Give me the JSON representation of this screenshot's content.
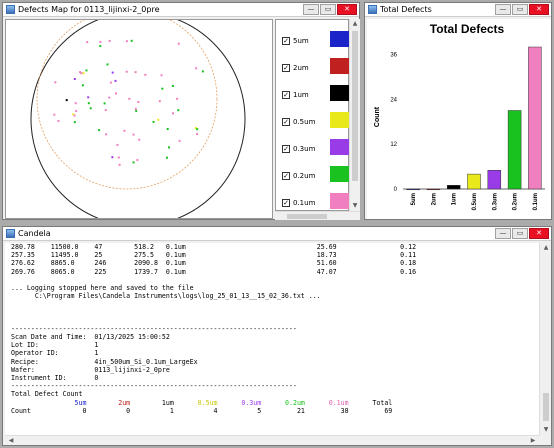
{
  "defects_map": {
    "title": "Defects Map for 0113_lijinxi-2_0pre",
    "legend": [
      {
        "label": "5um",
        "color": "#1b24c8",
        "checked": true
      },
      {
        "label": "2um",
        "color": "#c0201f",
        "checked": true
      },
      {
        "label": "1um",
        "color": "#000000",
        "checked": true
      },
      {
        "label": "0.5um",
        "color": "#e8e81a",
        "checked": true
      },
      {
        "label": "0.3um",
        "color": "#9a3be8",
        "checked": true
      },
      {
        "label": "0.2um",
        "color": "#19c21f",
        "checked": true
      },
      {
        "label": "0.1um",
        "color": "#f07fc0",
        "checked": true
      }
    ]
  },
  "total_defects": {
    "title": "Total Defects",
    "chart_data": {
      "type": "bar",
      "title": "Total Defects",
      "ylabel": "Count",
      "xlabel": "",
      "categories": [
        "5um",
        "2um",
        "1um",
        "0.5um",
        "0.3um",
        "0.2um",
        "0.1um"
      ],
      "values": [
        0,
        0,
        1,
        4,
        5,
        21,
        38
      ],
      "colors": [
        "#1b24c8",
        "#c0201f",
        "#000000",
        "#e8e81a",
        "#9a3be8",
        "#19c21f",
        "#f07fc0"
      ],
      "ylim": [
        0,
        38
      ],
      "yticks": [
        "0",
        "12",
        "24",
        "36"
      ]
    }
  },
  "candela": {
    "title": "Candela",
    "data_rows": [
      {
        "a": "280.78",
        "b": "11500.0",
        "c": "47",
        "d": "518.2",
        "e": "0.1um",
        "f": "25.69",
        "g": "0.12"
      },
      {
        "a": "257.35",
        "b": "11495.0",
        "c": "25",
        "d": "275.5",
        "e": "0.1um",
        "f": "18.73",
        "g": "0.11"
      },
      {
        "a": "276.62",
        "b": "8865.0",
        "c": "246",
        "d": "2090.8",
        "e": "0.1um",
        "f": "51.60",
        "g": "0.18"
      },
      {
        "a": "269.76",
        "b": "8065.0",
        "c": "225",
        "d": "1739.7",
        "e": "0.1um",
        "f": "47.07",
        "g": "0.16"
      }
    ],
    "log_line1": "... Logging stopped here and saved to the file",
    "log_line2": "C:\\Program Files\\Candela Instruments\\logs\\log_25_01_13__15_02_36.txt ...",
    "divider": "------------------------------------------------------------------------",
    "scan_date_label": "Scan Date and Time:",
    "scan_date_value": "01/13/2025 15:00:52",
    "lot_label": "Lot ID:",
    "lot_value": "1",
    "operator_label": "Operator ID:",
    "operator_value": "1",
    "recipe_label": "Recipe:",
    "recipe_value": "4in_500um_Si_0.1um_LargeEx",
    "wafer_label": "Wafer:",
    "wafer_value": "0113_lijinxi-2_0pre",
    "instrument_label": "Instrument ID:",
    "instrument_value": "0",
    "total_defect_count_label": "Total Defect Count",
    "count_row_label": "Count",
    "total_header": "Total",
    "total_count": "69",
    "bins": [
      {
        "label": "5um",
        "count": "0",
        "color": "#1b24c8"
      },
      {
        "label": "2um",
        "count": "0",
        "color": "#c0201f"
      },
      {
        "label": "1um",
        "count": "1",
        "color": "#000000"
      },
      {
        "label": "0.5um",
        "count": "4",
        "color": "#c8c800"
      },
      {
        "label": "0.3um",
        "count": "5",
        "color": "#9a3be8"
      },
      {
        "label": "0.2um",
        "count": "21",
        "color": "#19c21f"
      },
      {
        "label": "0.1um",
        "count": "38",
        "color": "#e060b0"
      }
    ]
  },
  "window_buttons": {
    "minimize": "—",
    "maximize": "▭",
    "close": "✕"
  }
}
